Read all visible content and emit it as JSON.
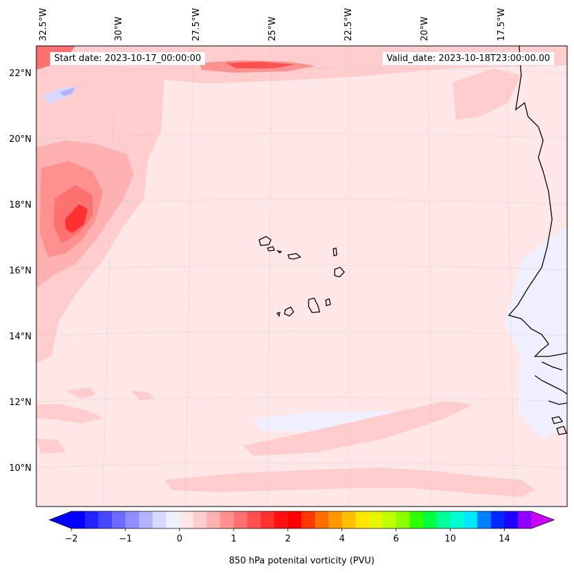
{
  "header": {
    "start_date": "Start date: 2023-10-17_00:00:00",
    "valid_date": "Valid_date: 2023-10-18T23:00:00.00"
  },
  "map": {
    "lon_labels": [
      "32.5°W",
      "30°W",
      "27.5°W",
      "25°W",
      "22.5°W",
      "20°W",
      "17.5°W"
    ],
    "lat_labels": [
      "22°N",
      "20°N",
      "18°N",
      "16°N",
      "14°N",
      "12°N",
      "10°N"
    ],
    "background_color": "#ffe7e7",
    "coastline_color": "#000000"
  },
  "colorbar": {
    "label": "850 hPa potenital vorticity (PVU)",
    "tick_labels": [
      "−2",
      "−1",
      "0",
      "1",
      "2",
      "4",
      "6",
      "10",
      "14"
    ],
    "colors": [
      "#0000ff",
      "#2323ff",
      "#4747ff",
      "#6b6bff",
      "#8f8fff",
      "#b3b3ff",
      "#d7d7ff",
      "#efefff",
      "#ffe7e7",
      "#ffcdcd",
      "#ffb0b0",
      "#ff9090",
      "#ff7070",
      "#ff5050",
      "#ff3030",
      "#ff1010",
      "#ff0000",
      "#ff3800",
      "#ff6e00",
      "#ff9800",
      "#ffc000",
      "#ffe600",
      "#e8f500",
      "#c0ff00",
      "#8cff00",
      "#30ff00",
      "#00ff40",
      "#00ff9c",
      "#00ffd4",
      "#00e8ff",
      "#0080ff",
      "#0028ff",
      "#2000ff",
      "#9000ff"
    ],
    "under_color": "#0000ff",
    "over_color": "#cc00ff"
  }
}
